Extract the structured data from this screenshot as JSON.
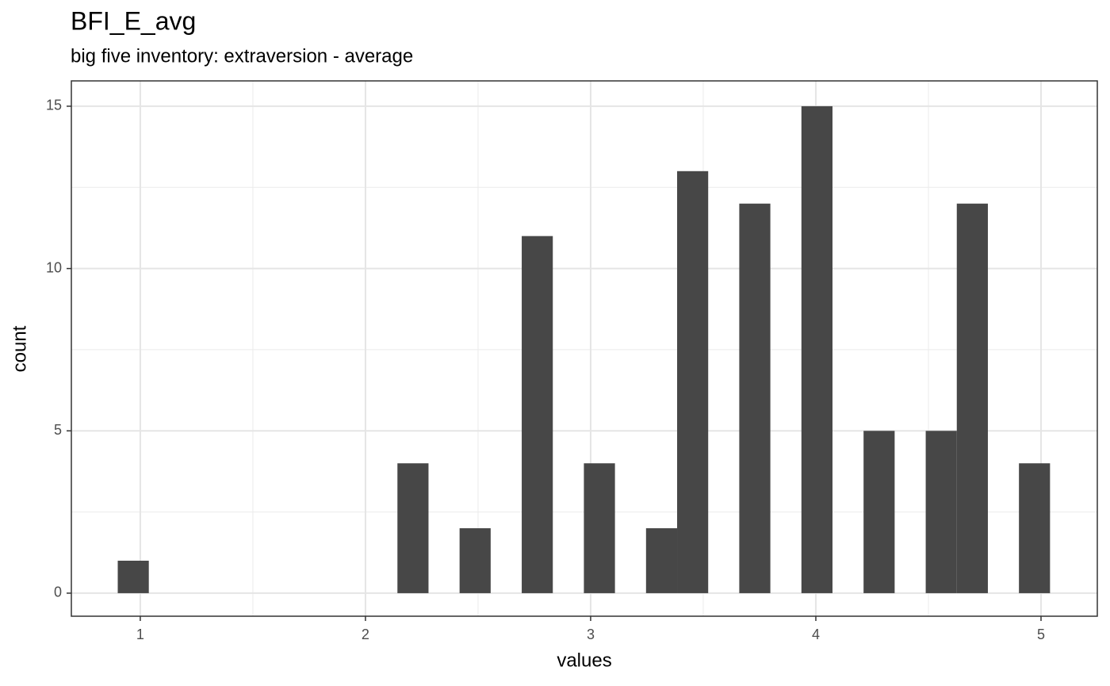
{
  "chart_data": {
    "type": "histogram",
    "title": "BFI_E_avg",
    "subtitle": "big five inventory: extraversion - average",
    "x_label": "values",
    "y_label": "count",
    "bins": [
      0.9,
      1.038,
      1.176,
      1.314,
      1.452,
      1.59,
      1.728,
      1.866,
      2.004,
      2.142,
      2.28,
      2.418,
      2.556,
      2.694,
      2.832,
      2.97,
      3.108,
      3.246,
      3.384,
      3.522,
      3.66,
      3.798,
      3.936,
      4.074,
      4.212,
      4.35,
      4.488,
      4.626,
      4.764,
      4.902,
      5.04
    ],
    "values": [
      1,
      0,
      0,
      0,
      0,
      0,
      0,
      0,
      0,
      4,
      0,
      2,
      0,
      11,
      0,
      4,
      0,
      2,
      13,
      0,
      12,
      0,
      15,
      0,
      5,
      0,
      5,
      12,
      0,
      4
    ],
    "color": "#474747",
    "xlim": [
      0.694,
      5.25
    ],
    "ylim": [
      -0.71,
      15.78
    ],
    "xticks": [
      1,
      2,
      3,
      4,
      5
    ],
    "yticks": [
      0,
      5,
      10,
      15
    ],
    "grid": true
  }
}
